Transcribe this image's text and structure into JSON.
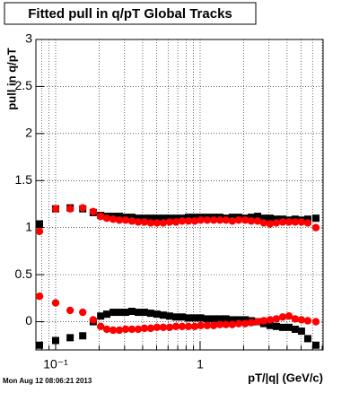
{
  "chart_data": {
    "type": "scatter",
    "title": "Fitted pull in q/pT  Global Tracks",
    "y_label": "pull in q/pT",
    "x_label": "pT/|q| (GeV/c)",
    "footer": "Mon Aug 12 08:06:21 2013",
    "log_x": true,
    "grid": true,
    "xlim": [
      0.073,
      7.1
    ],
    "ylim": [
      -0.3,
      3
    ],
    "xticks": [
      {
        "value": 0.1,
        "label": "10⁻¹"
      },
      1
    ],
    "yticks": [
      0,
      0.5,
      1,
      1.5,
      2,
      2.5,
      3
    ],
    "x": [
      0.0773,
      0.1,
      0.126,
      0.154,
      0.182,
      0.205,
      0.226,
      0.25,
      0.276,
      0.305,
      0.337,
      0.373,
      0.412,
      0.455,
      0.503,
      0.556,
      0.615,
      0.68,
      0.751,
      0.83,
      0.918,
      1.01,
      1.12,
      1.24,
      1.37,
      1.51,
      1.67,
      1.85,
      2.05,
      2.26,
      2.5,
      2.76,
      3.05,
      3.37,
      3.73,
      4.12,
      4.55,
      5.03,
      5.56,
      6.33
    ],
    "series": [
      {
        "color": "#000000",
        "values": [
          1.04,
          1.2,
          1.21,
          1.2,
          1.16,
          1.13,
          1.12,
          1.12,
          1.12,
          1.11,
          1.11,
          1.1,
          1.1,
          1.1,
          1.1,
          1.1,
          1.1,
          1.1,
          1.1,
          1.11,
          1.11,
          1.11,
          1.11,
          1.11,
          1.11,
          1.1,
          1.11,
          1.11,
          1.1,
          1.11,
          1.12,
          1.1,
          1.1,
          1.09,
          1.09,
          1.08,
          1.09,
          1.08,
          1.09,
          1.1
        ]
      },
      {
        "color": "#ff0000",
        "values": [
          0.96,
          1.2,
          1.2,
          1.21,
          1.17,
          1.12,
          1.1,
          1.09,
          1.08,
          1.08,
          1.07,
          1.06,
          1.06,
          1.05,
          1.05,
          1.05,
          1.06,
          1.06,
          1.07,
          1.07,
          1.07,
          1.08,
          1.08,
          1.08,
          1.08,
          1.08,
          1.07,
          1.08,
          1.08,
          1.07,
          1.07,
          1.05,
          1.04,
          1.05,
          1.06,
          1.06,
          1.06,
          1.06,
          1.05,
          1.0
        ]
      },
      {
        "color": "#000000",
        "values": [
          -0.25,
          -0.2,
          -0.17,
          -0.15,
          0.0,
          0.06,
          0.08,
          0.1,
          0.1,
          0.1,
          0.11,
          0.1,
          0.1,
          0.09,
          0.08,
          0.07,
          0.06,
          0.05,
          0.05,
          0.04,
          0.04,
          0.04,
          0.03,
          0.03,
          0.03,
          0.03,
          0.02,
          0.02,
          0.02,
          0.01,
          0.0,
          -0.02,
          -0.04,
          -0.05,
          -0.06,
          -0.06,
          -0.08,
          -0.1,
          -0.18,
          -0.25
        ]
      },
      {
        "color": "#ff0000",
        "values": [
          0.27,
          0.2,
          0.12,
          0.1,
          0.02,
          -0.05,
          -0.08,
          -0.09,
          -0.09,
          -0.08,
          -0.08,
          -0.08,
          -0.07,
          -0.07,
          -0.06,
          -0.06,
          -0.06,
          -0.05,
          -0.05,
          -0.05,
          -0.05,
          -0.04,
          -0.04,
          -0.04,
          -0.03,
          -0.03,
          -0.03,
          -0.02,
          -0.02,
          -0.01,
          0.0,
          0.01,
          0.02,
          0.03,
          0.05,
          0.06,
          0.03,
          0.02,
          0.01,
          0.0
        ]
      }
    ]
  }
}
